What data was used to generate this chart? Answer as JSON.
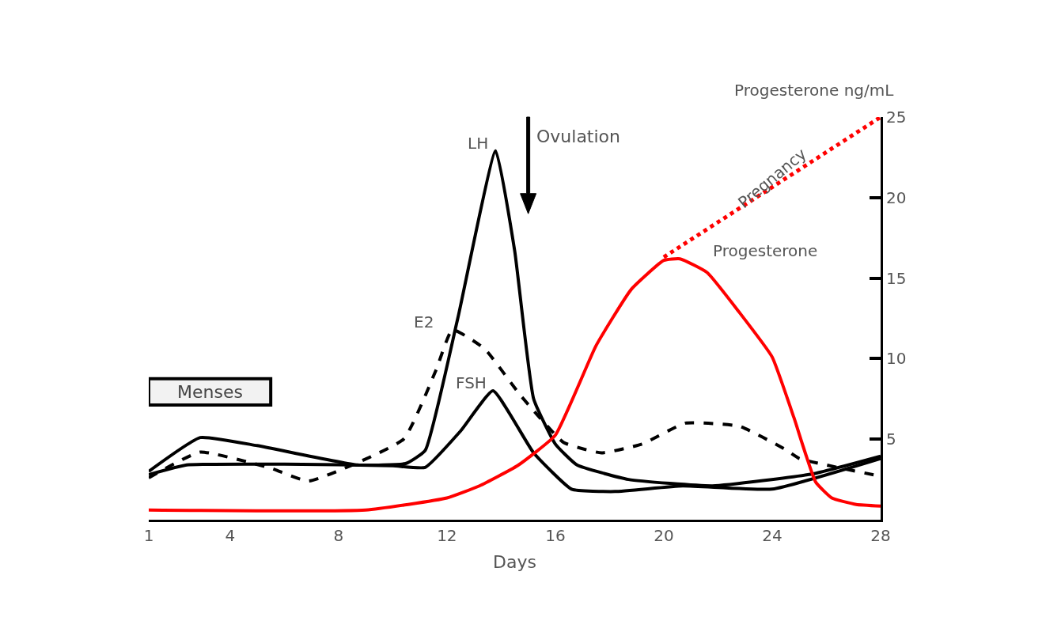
{
  "chart_data": {
    "type": "line",
    "xlabel": "Days",
    "ylabel": "Progesterone ng/mL",
    "xlim": [
      1,
      28
    ],
    "xticks": [
      1,
      4,
      8,
      12,
      16,
      20,
      24,
      28
    ],
    "ylim": [
      0,
      25
    ],
    "yticks": [
      5,
      10,
      15,
      20,
      25
    ],
    "legend": false,
    "series": [
      {
        "name": "LH",
        "color": "#000000",
        "line_style": "solid",
        "x": [
          1,
          2.9,
          5,
          8.7,
          10.5,
          11.2,
          12.4,
          13.8,
          14.5,
          15.2,
          16,
          16.8,
          18.7,
          21.8,
          25.5,
          28
        ],
        "values": [
          3.0,
          5.1,
          4.6,
          3.4,
          3.5,
          4.3,
          12.5,
          22.9,
          16.7,
          7.5,
          4.7,
          3.4,
          2.5,
          2.1,
          2.85,
          3.95
        ]
      },
      {
        "name": "FSH",
        "color": "#000000",
        "line_style": "solid",
        "x": [
          1,
          2.4,
          6,
          10,
          11.2,
          12.5,
          13.7,
          15.2,
          16.6,
          18.2,
          20.7,
          24,
          28
        ],
        "values": [
          2.8,
          3.4,
          3.45,
          3.35,
          3.25,
          5.5,
          8.0,
          4.15,
          1.9,
          1.75,
          2.1,
          1.9,
          3.8
        ]
      },
      {
        "name": "E2",
        "color": "#000000",
        "line_style": "dashed",
        "x": [
          1,
          2.9,
          5.5,
          6.9,
          10.4,
          11.6,
          12.2,
          13.4,
          14.7,
          16.3,
          17.7,
          19.2,
          20.8,
          22.8,
          24.5,
          25,
          28
        ],
        "values": [
          2.6,
          4.2,
          3.2,
          2.4,
          5.0,
          9.3,
          11.8,
          10.6,
          7.75,
          4.8,
          4.15,
          4.7,
          6.0,
          5.8,
          4.35,
          3.8,
          2.7
        ]
      },
      {
        "name": "Progesterone",
        "color": "#ff0000",
        "line_style": "solid",
        "x": [
          1,
          9,
          12,
          13.2,
          14.6,
          16,
          17.5,
          18.8,
          20,
          20.6,
          21.6,
          22.8,
          24,
          24.8,
          25.6,
          26.2,
          27.1,
          28
        ],
        "values": [
          0.6,
          0.6,
          1.35,
          2.1,
          3.35,
          5.25,
          10.8,
          14.3,
          16.1,
          16.2,
          15.35,
          12.85,
          10.1,
          6.35,
          2.35,
          1.35,
          0.95,
          0.85
        ]
      },
      {
        "name": "Pregnancy",
        "color": "#ff0000",
        "line_style": "dotted",
        "x": [
          20,
          28
        ],
        "values": [
          16.3,
          25
        ]
      }
    ],
    "bands": [
      {
        "axis": "x",
        "from": 1,
        "to": 5.5,
        "label": "Menses"
      }
    ],
    "ref_lines": [
      {
        "axis": "x",
        "value": 15,
        "label": "Ovulation"
      }
    ]
  }
}
